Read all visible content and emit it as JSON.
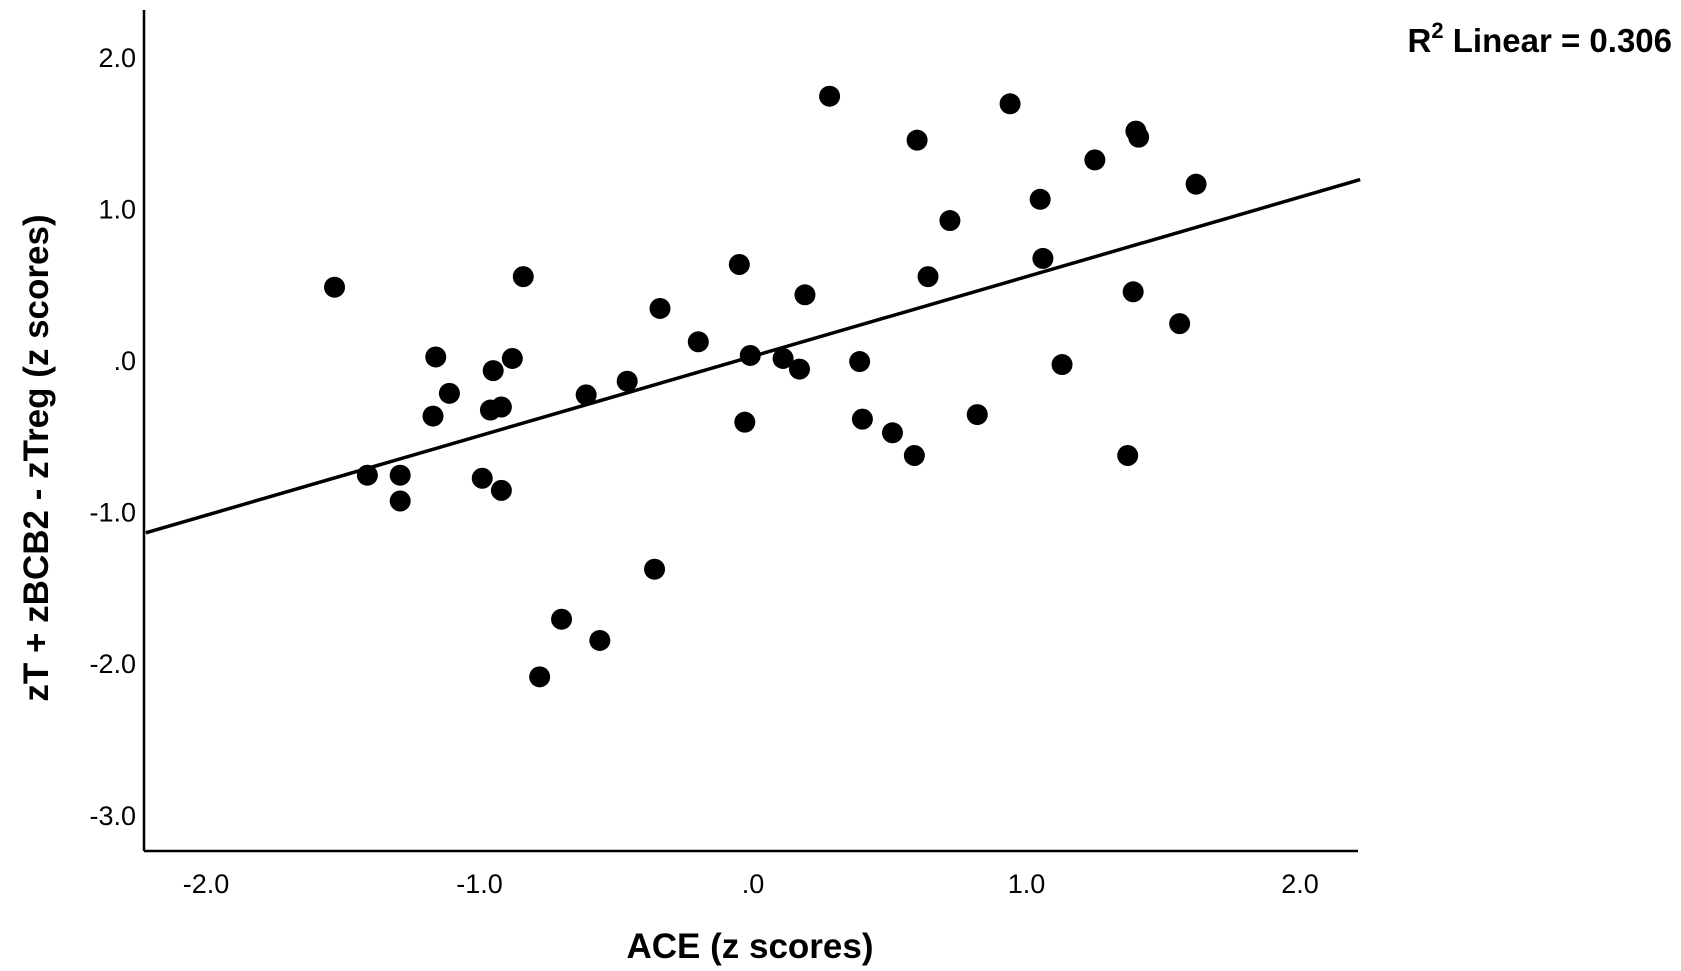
{
  "chart_data": {
    "type": "scatter",
    "xlabel": "ACE (z scores)",
    "ylabel": "zT + zBCB2 - zTreg (z scores)",
    "xlim": [
      -2.22,
      2.22
    ],
    "ylim": [
      -3.25,
      2.3
    ],
    "x_ticks": [
      -2.0,
      -1.0,
      0.0,
      1.0,
      2.0
    ],
    "x_tick_labels": [
      "-2.0",
      "-1.0",
      ".0",
      "1.0",
      "2.0"
    ],
    "y_ticks": [
      -3.0,
      -2.0,
      -1.0,
      0.0,
      1.0,
      2.0
    ],
    "y_tick_labels": [
      "-3.0",
      "-2.0",
      "-1.0",
      ".0",
      "1.0",
      "2.0"
    ],
    "grid": false,
    "colors": {
      "points": "#000000",
      "line": "#000000",
      "axes": "#000000"
    },
    "fit_line": {
      "type": "linear",
      "points": [
        [
          -2.22,
          -1.14
        ],
        [
          2.22,
          1.19
        ]
      ],
      "annotation_prefix": "R",
      "annotation_superscript": "2",
      "annotation_text": " Linear = 0.306"
    },
    "points": [
      [
        -1.53,
        0.48
      ],
      [
        -1.41,
        -0.76
      ],
      [
        -1.29,
        -0.76
      ],
      [
        -1.29,
        -0.93
      ],
      [
        -1.16,
        0.02
      ],
      [
        -1.17,
        -0.37
      ],
      [
        -1.11,
        -0.22
      ],
      [
        -0.99,
        -0.78
      ],
      [
        -0.96,
        -0.33
      ],
      [
        -0.95,
        -0.07
      ],
      [
        -0.92,
        -0.31
      ],
      [
        -0.92,
        -0.86
      ],
      [
        -0.88,
        0.01
      ],
      [
        -0.84,
        0.55
      ],
      [
        -0.78,
        -2.09
      ],
      [
        -0.7,
        -1.71
      ],
      [
        -0.56,
        -1.85
      ],
      [
        -0.61,
        -0.23
      ],
      [
        -0.46,
        -0.14
      ],
      [
        -0.36,
        -1.38
      ],
      [
        -0.34,
        0.34
      ],
      [
        -0.2,
        0.12
      ],
      [
        -0.05,
        0.63
      ],
      [
        -0.03,
        -0.41
      ],
      [
        -0.01,
        0.03
      ],
      [
        0.11,
        0.01
      ],
      [
        0.17,
        -0.06
      ],
      [
        0.19,
        0.43
      ],
      [
        0.28,
        1.74
      ],
      [
        0.39,
        -0.01
      ],
      [
        0.4,
        -0.39
      ],
      [
        0.51,
        -0.48
      ],
      [
        0.59,
        -0.63
      ],
      [
        0.6,
        1.45
      ],
      [
        0.64,
        0.55
      ],
      [
        0.72,
        0.92
      ],
      [
        0.82,
        -0.36
      ],
      [
        0.94,
        1.69
      ],
      [
        1.05,
        1.06
      ],
      [
        1.06,
        0.67
      ],
      [
        1.13,
        -0.03
      ],
      [
        1.25,
        1.32
      ],
      [
        1.37,
        -0.63
      ],
      [
        1.39,
        0.45
      ],
      [
        1.4,
        1.51
      ],
      [
        1.41,
        1.47
      ],
      [
        1.56,
        0.24
      ],
      [
        1.62,
        1.16
      ]
    ]
  }
}
